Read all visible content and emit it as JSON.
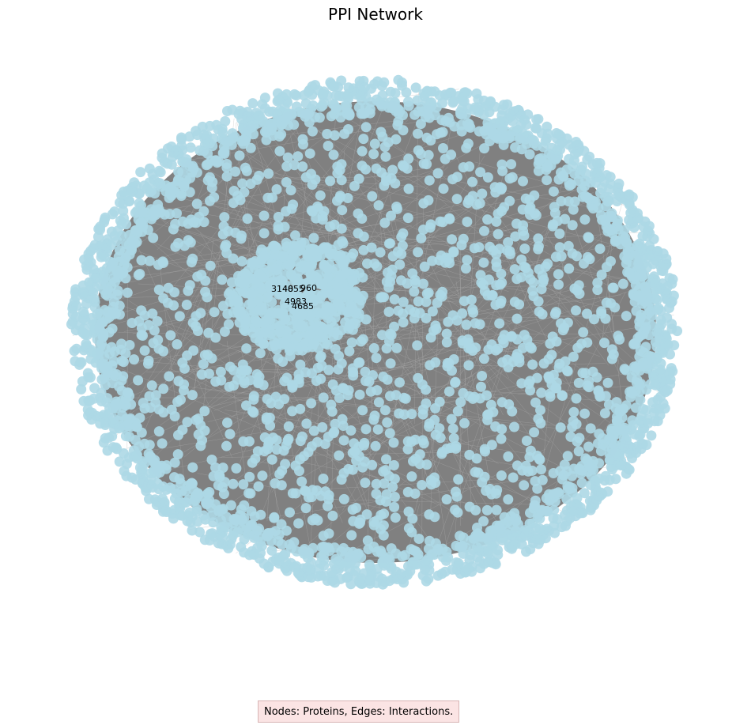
{
  "figure": {
    "title": "PPI Network",
    "caption": "Nodes: Proteins, Edges: Interactions."
  },
  "network": {
    "node_color": "#add8e6",
    "edge_color": "#808080",
    "hub_labels": [
      "3140",
      "4855",
      "960",
      "4983",
      "4685"
    ]
  }
}
